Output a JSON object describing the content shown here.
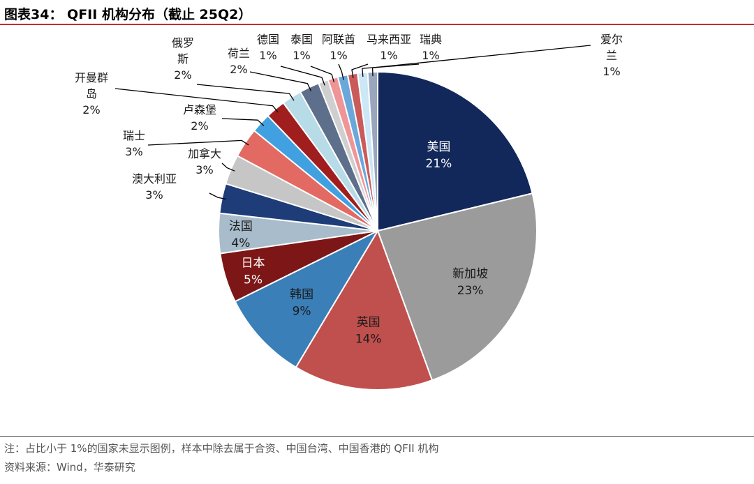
{
  "title": "图表34： QFII 机构分布（截止 25Q2）",
  "footer": {
    "note": "注：占比小于 1%的国家未显示图例，样本中除去属于合资、中国台湾、中国香港的 QFII 机构",
    "source": "资料来源：Wind，华泰研究"
  },
  "chart_data": {
    "type": "pie",
    "title": "QFII 机构分布（截止 25Q2）",
    "start_angle_deg": 90,
    "direction": "clockwise",
    "slices": [
      {
        "name": "美国",
        "value": 21,
        "label": "21%",
        "color": "#12285a"
      },
      {
        "name": "新加坡",
        "value": 23,
        "label": "23%",
        "color": "#9b9b9b"
      },
      {
        "name": "英国",
        "value": 14,
        "label": "14%",
        "color": "#c0504d"
      },
      {
        "name": "韩国",
        "value": 9,
        "label": "9%",
        "color": "#3a7fb8"
      },
      {
        "name": "日本",
        "value": 5,
        "label": "5%",
        "color": "#7d1717"
      },
      {
        "name": "法国",
        "value": 4,
        "label": "4%",
        "color": "#a8bccb"
      },
      {
        "name": "澳大利亚",
        "value": 3,
        "label": "3%",
        "color": "#1e3c78"
      },
      {
        "name": "加拿大",
        "value": 3,
        "label": "3%",
        "color": "#c6c6c6"
      },
      {
        "name": "瑞士",
        "value": 3,
        "label": "3%",
        "color": "#e26a63"
      },
      {
        "name": "卢森堡",
        "value": 2,
        "label": "2%",
        "color": "#41a0e0"
      },
      {
        "name": "开曼群岛",
        "value": 2,
        "label": "2%",
        "color": "#a11e1e"
      },
      {
        "name": "俄罗斯",
        "value": 2,
        "label": "2%",
        "color": "#b7dbe7"
      },
      {
        "name": "荷兰",
        "value": 2,
        "label": "2%",
        "color": "#5e6f8c"
      },
      {
        "name": "德国",
        "value": 1,
        "label": "1%",
        "color": "#cfcfcf"
      },
      {
        "name": "泰国",
        "value": 1,
        "label": "1%",
        "color": "#ef9597"
      },
      {
        "name": "阿联酋",
        "value": 1,
        "label": "1%",
        "color": "#6aa8db"
      },
      {
        "name": "马来西亚",
        "value": 1,
        "label": "1%",
        "color": "#c95b5b"
      },
      {
        "name": "瑞典",
        "value": 1,
        "label": "1%",
        "color": "#cce7f5"
      },
      {
        "name": "爱尔兰",
        "value": 1,
        "label": "1%",
        "color": "#9aa6bd"
      }
    ]
  }
}
